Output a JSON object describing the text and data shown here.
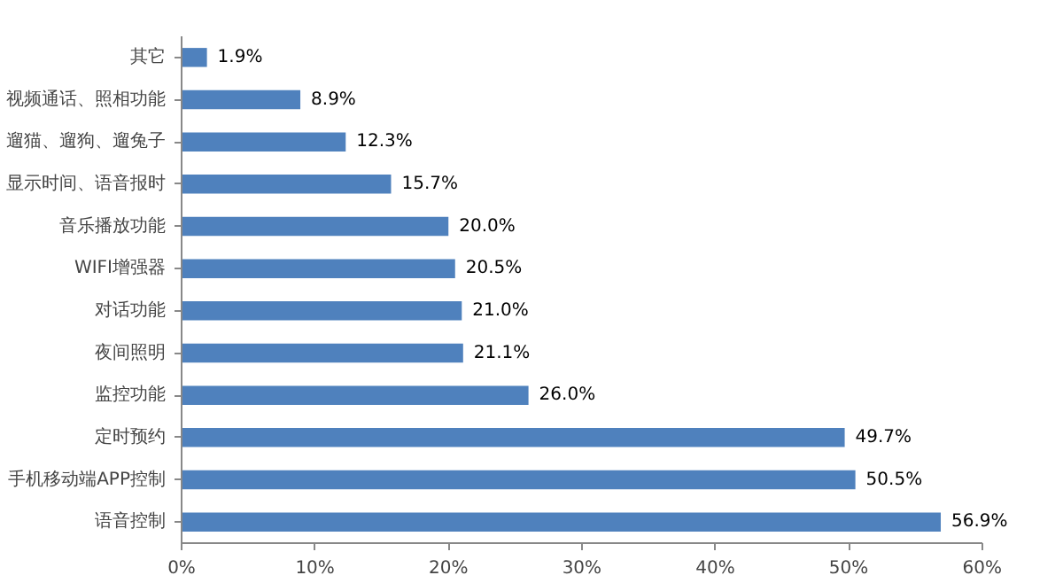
{
  "chart_data": {
    "type": "bar",
    "orientation": "horizontal",
    "categories": [
      "其它",
      "视频通话、照相功能",
      "遛猫、遛狗、遛兔子",
      "显示时间、语音报时",
      "音乐播放功能",
      "WIFI增强器",
      "对话功能",
      "夜间照明",
      "监控功能",
      "定时预约",
      "手机移动端APP控制",
      "语音控制"
    ],
    "values": [
      1.9,
      8.9,
      12.3,
      15.7,
      20.0,
      20.5,
      21.0,
      21.1,
      26.0,
      49.7,
      50.5,
      56.9
    ],
    "value_labels": [
      "1.9%",
      "8.9%",
      "12.3%",
      "15.7%",
      "20.0%",
      "20.5%",
      "21.0%",
      "21.1%",
      "26.0%",
      "49.7%",
      "50.5%",
      "56.9%"
    ],
    "color": "#4f81bd",
    "xlim": [
      0,
      60
    ],
    "xticks": [
      {
        "value": 0,
        "label": "0%"
      },
      {
        "value": 10,
        "label": "10%"
      },
      {
        "value": 20,
        "label": "20%"
      },
      {
        "value": 30,
        "label": "30%"
      },
      {
        "value": 40,
        "label": "40%"
      },
      {
        "value": 50,
        "label": "50%"
      },
      {
        "value": 60,
        "label": "60%"
      }
    ],
    "grid": false
  }
}
